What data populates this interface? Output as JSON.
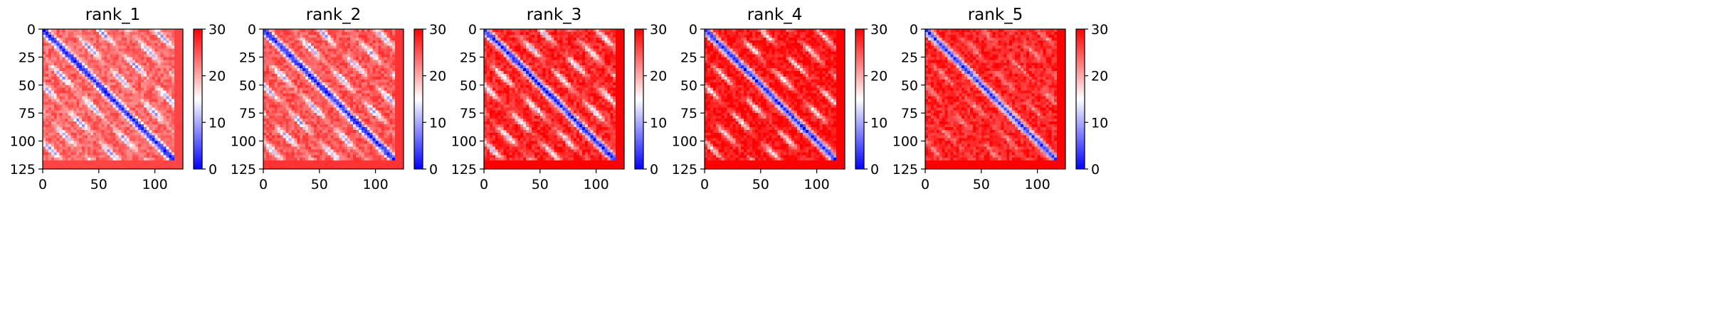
{
  "chart_data": [
    {
      "type": "heatmap",
      "title": "rank_1",
      "xlim": [
        0,
        125
      ],
      "ylim": [
        125,
        0
      ],
      "x_ticks": [
        "0",
        "50",
        "100"
      ],
      "y_ticks": [
        "0",
        "25",
        "50",
        "75",
        "100",
        "125"
      ],
      "colorbar": {
        "colormap": "bwr",
        "range": [
          0,
          30
        ],
        "ticks": [
          "0",
          "10",
          "20",
          "30"
        ]
      },
      "pattern": {
        "diagonal_value": 2,
        "offdiag_band_value": 9,
        "background_value": 24,
        "band_period": 25
      }
    },
    {
      "type": "heatmap",
      "title": "rank_2",
      "xlim": [
        0,
        125
      ],
      "ylim": [
        125,
        0
      ],
      "x_ticks": [
        "0",
        "50",
        "100"
      ],
      "y_ticks": [
        "0",
        "25",
        "50",
        "75",
        "100",
        "125"
      ],
      "colorbar": {
        "colormap": "bwr",
        "range": [
          0,
          30
        ],
        "ticks": [
          "0",
          "10",
          "20",
          "30"
        ]
      },
      "pattern": {
        "diagonal_value": 2,
        "offdiag_band_value": 10,
        "background_value": 25,
        "band_period": 25
      }
    },
    {
      "type": "heatmap",
      "title": "rank_3",
      "xlim": [
        0,
        125
      ],
      "ylim": [
        125,
        0
      ],
      "x_ticks": [
        "0",
        "50",
        "100"
      ],
      "y_ticks": [
        "0",
        "25",
        "50",
        "75",
        "100",
        "125"
      ],
      "colorbar": {
        "colormap": "bwr",
        "range": [
          0,
          30
        ],
        "ticks": [
          "0",
          "10",
          "20",
          "30"
        ]
      },
      "pattern": {
        "diagonal_value": 2,
        "offdiag_band_value": 13,
        "background_value": 28,
        "band_period": 25
      }
    },
    {
      "type": "heatmap",
      "title": "rank_4",
      "xlim": [
        0,
        125
      ],
      "ylim": [
        125,
        0
      ],
      "x_ticks": [
        "0",
        "50",
        "100"
      ],
      "y_ticks": [
        "0",
        "25",
        "50",
        "75",
        "100",
        "125"
      ],
      "colorbar": {
        "colormap": "bwr",
        "range": [
          0,
          30
        ],
        "ticks": [
          "0",
          "10",
          "20",
          "30"
        ]
      },
      "pattern": {
        "diagonal_value": 2,
        "offdiag_band_value": 16,
        "background_value": 29,
        "band_period": 25
      }
    },
    {
      "type": "heatmap",
      "title": "rank_5",
      "xlim": [
        0,
        125
      ],
      "ylim": [
        125,
        0
      ],
      "x_ticks": [
        "0",
        "50",
        "100"
      ],
      "y_ticks": [
        "0",
        "25",
        "50",
        "75",
        "100",
        "125"
      ],
      "colorbar": {
        "colormap": "bwr",
        "range": [
          0,
          30
        ],
        "ticks": [
          "0",
          "10",
          "20",
          "30"
        ]
      },
      "pattern": {
        "diagonal_value": 3,
        "offdiag_band_value": 22,
        "background_value": 28,
        "band_period": 25
      }
    }
  ]
}
